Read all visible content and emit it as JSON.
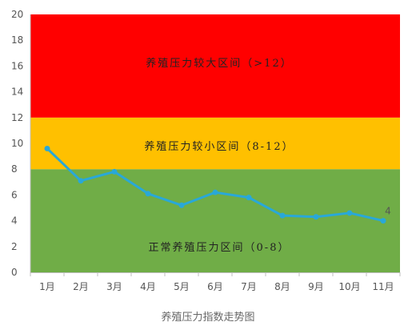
{
  "chart_data": {
    "type": "line",
    "caption": "养殖压力指数走势图",
    "categories": [
      "1月",
      "2月",
      "3月",
      "4月",
      "5月",
      "6月",
      "7月",
      "8月",
      "9月",
      "10月",
      "11月"
    ],
    "values": [
      9.6,
      7.1,
      7.8,
      6.1,
      5.2,
      6.2,
      5.8,
      4.4,
      4.3,
      4.6,
      4.0
    ],
    "ylim": [
      0,
      20
    ],
    "yticks": [
      "0",
      "2",
      "4",
      "6",
      "8",
      "10",
      "12",
      "14",
      "16",
      "18",
      "20"
    ],
    "line_color": "#29a8d8",
    "bands": [
      {
        "from": 0,
        "to": 8,
        "color": "#70ad47",
        "label": "正常养殖压力区间（0-8）"
      },
      {
        "from": 8,
        "to": 12,
        "color": "#ffc000",
        "label": "养殖压力较小区间（8-12）"
      },
      {
        "from": 12,
        "to": 20,
        "color": "#ff0000",
        "label": "养殖压力较大区间（>12）"
      }
    ],
    "data_labels": [
      {
        "index": 10,
        "text": "4"
      }
    ]
  }
}
